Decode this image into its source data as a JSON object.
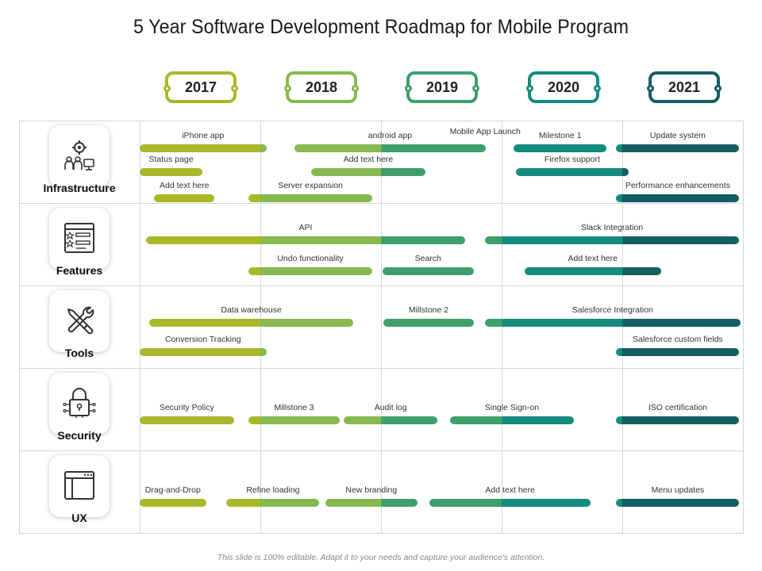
{
  "title": "5 Year Software Development Roadmap for Mobile Program",
  "years": [
    "2017",
    "2018",
    "2019",
    "2020",
    "2021"
  ],
  "year_colors": [
    "#a9b82b",
    "#86b94f",
    "#3e9f6c",
    "#138c7e",
    "#155e62"
  ],
  "categories": [
    {
      "label": "Infrastructure",
      "icon": "gear-people-icon"
    },
    {
      "label": "Features",
      "icon": "checklist-icon"
    },
    {
      "label": "Tools",
      "icon": "tools-icon"
    },
    {
      "label": "Security",
      "icon": "lock-circuit-icon"
    },
    {
      "label": "UX",
      "icon": "browser-window-icon"
    }
  ],
  "tasks": [
    {
      "row": 0,
      "label": "iPhone app",
      "start": 2017.0,
      "end": 2018.05
    },
    {
      "row": 0,
      "label": "Status page",
      "start": 2017.0,
      "end": 2017.52
    },
    {
      "row": 0,
      "label": "Add text here",
      "start": 2017.12,
      "end": 2017.62
    },
    {
      "row": 0,
      "label": "android app",
      "start": 2018.28,
      "end": 2019.87
    },
    {
      "row": 0,
      "label": "Mobile App Launch",
      "start": 2019.87,
      "end": 2019.87
    },
    {
      "row": 0,
      "label": "Add text here",
      "start": 2018.42,
      "end": 2019.37
    },
    {
      "row": 0,
      "label": "Server expansion",
      "start": 2017.9,
      "end": 2018.93
    },
    {
      "row": 0,
      "label": "Milestone  1",
      "start": 2020.1,
      "end": 2020.87
    },
    {
      "row": 0,
      "label": "Firefox support",
      "start": 2020.12,
      "end": 2021.05
    },
    {
      "row": 0,
      "label": "Update system",
      "start": 2020.95,
      "end": 2021.97
    },
    {
      "row": 0,
      "label": "Performance enhancements",
      "start": 2020.95,
      "end": 2021.97
    },
    {
      "row": 1,
      "label": "API",
      "start": 2017.05,
      "end": 2019.7
    },
    {
      "row": 1,
      "label": "Undo functionality",
      "start": 2017.9,
      "end": 2018.93
    },
    {
      "row": 1,
      "label": "Search",
      "start": 2019.01,
      "end": 2019.77
    },
    {
      "row": 1,
      "label": "Slack Integration",
      "start": 2019.86,
      "end": 2021.97
    },
    {
      "row": 1,
      "label": "Add text here",
      "start": 2020.19,
      "end": 2021.32
    },
    {
      "row": 2,
      "label": "Data warehouse",
      "start": 2017.08,
      "end": 2018.77
    },
    {
      "row": 2,
      "label": "Millstone  2",
      "start": 2019.02,
      "end": 2019.77
    },
    {
      "row": 2,
      "label": "Salesforce Integration",
      "start": 2019.86,
      "end": 2021.98
    },
    {
      "row": 2,
      "label": "Conversion Tracking",
      "start": 2017.0,
      "end": 2018.05
    },
    {
      "row": 2,
      "label": "Salesforce custom fields",
      "start": 2020.95,
      "end": 2021.97
    },
    {
      "row": 3,
      "label": "Security Policy",
      "start": 2017.0,
      "end": 2017.78
    },
    {
      "row": 3,
      "label": "Millstone  3",
      "start": 2017.9,
      "end": 2018.66
    },
    {
      "row": 3,
      "label": "Audit log",
      "start": 2018.69,
      "end": 2019.47
    },
    {
      "row": 3,
      "label": "Single Sign-on",
      "start": 2019.57,
      "end": 2020.6
    },
    {
      "row": 3,
      "label": "ISO certification",
      "start": 2020.95,
      "end": 2021.97
    },
    {
      "row": 4,
      "label": "Drag-and-Drop",
      "start": 2017.0,
      "end": 2017.55
    },
    {
      "row": 4,
      "label": "Refine loading",
      "start": 2017.72,
      "end": 2018.49
    },
    {
      "row": 4,
      "label": "New branding",
      "start": 2018.54,
      "end": 2019.3
    },
    {
      "row": 4,
      "label": "Add text here",
      "start": 2019.4,
      "end": 2020.74
    },
    {
      "row": 4,
      "label": "Menu updates",
      "start": 2020.95,
      "end": 2021.97
    }
  ],
  "footer": "This slide is 100% editable. Adapt it to your needs and capture your audience's attention."
}
